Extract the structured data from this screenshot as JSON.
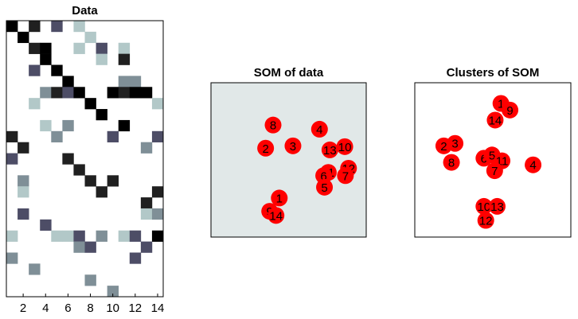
{
  "chart_data": [
    {
      "type": "heatmap",
      "title": "Data",
      "x_ticks": [
        "2",
        "4",
        "6",
        "8",
        "10",
        "12",
        "14"
      ],
      "xlim": [
        0.5,
        14.5
      ],
      "n_rows": 25,
      "level_colors": [
        "#ffffff",
        "#b2c8c8",
        "#7f8f97",
        "#4d4d66",
        "#202020",
        "#000000"
      ],
      "cells": [
        [
          1,
          1,
          5
        ],
        [
          3,
          1,
          4
        ],
        [
          5,
          1,
          3
        ],
        [
          7,
          1,
          1
        ],
        [
          2,
          2,
          5
        ],
        [
          8,
          2,
          1
        ],
        [
          3,
          3,
          4
        ],
        [
          4,
          3,
          5
        ],
        [
          7,
          3,
          1
        ],
        [
          9,
          3,
          3
        ],
        [
          11,
          3,
          1
        ],
        [
          4,
          4,
          5
        ],
        [
          9,
          4,
          1
        ],
        [
          11,
          4,
          4
        ],
        [
          3,
          5,
          3
        ],
        [
          5,
          5,
          5
        ],
        [
          6,
          6,
          5
        ],
        [
          11,
          6,
          2
        ],
        [
          12,
          6,
          2
        ],
        [
          4,
          7,
          2
        ],
        [
          5,
          7,
          4
        ],
        [
          6,
          7,
          3
        ],
        [
          7,
          7,
          5
        ],
        [
          10,
          7,
          5
        ],
        [
          11,
          7,
          4
        ],
        [
          12,
          7,
          5
        ],
        [
          13,
          7,
          5
        ],
        [
          3,
          8,
          1
        ],
        [
          8,
          8,
          5
        ],
        [
          14,
          8,
          1
        ],
        [
          9,
          9,
          5
        ],
        [
          4,
          10,
          1
        ],
        [
          6,
          10,
          2
        ],
        [
          11,
          10,
          5
        ],
        [
          1,
          11,
          4
        ],
        [
          5,
          11,
          2
        ],
        [
          10,
          11,
          3
        ],
        [
          14,
          11,
          3
        ],
        [
          2,
          12,
          4
        ],
        [
          13,
          12,
          2
        ],
        [
          1,
          13,
          3
        ],
        [
          6,
          13,
          4
        ],
        [
          7,
          14,
          4
        ],
        [
          2,
          15,
          2
        ],
        [
          8,
          15,
          4
        ],
        [
          10,
          15,
          4
        ],
        [
          2,
          16,
          1
        ],
        [
          9,
          16,
          4
        ],
        [
          14,
          16,
          4
        ],
        [
          13,
          17,
          4
        ],
        [
          2,
          18,
          3
        ],
        [
          13,
          18,
          1
        ],
        [
          14,
          18,
          2
        ],
        [
          4,
          19,
          3
        ],
        [
          1,
          20,
          1
        ],
        [
          5,
          20,
          1
        ],
        [
          6,
          20,
          1
        ],
        [
          7,
          20,
          3
        ],
        [
          9,
          20,
          2
        ],
        [
          11,
          20,
          1
        ],
        [
          12,
          20,
          3
        ],
        [
          14,
          20,
          5
        ],
        [
          7,
          21,
          2
        ],
        [
          8,
          21,
          3
        ],
        [
          13,
          21,
          3
        ],
        [
          1,
          22,
          2
        ],
        [
          12,
          22,
          3
        ],
        [
          3,
          23,
          2
        ],
        [
          8,
          24,
          2
        ],
        [
          10,
          25,
          2
        ]
      ]
    },
    {
      "type": "scatter",
      "title": "SOM of data",
      "background": "#e1e8e8",
      "marker_color": "#ff0000",
      "points": [
        {
          "label": "8",
          "x": 0.4,
          "y": 0.726
        },
        {
          "label": "2",
          "x": 0.352,
          "y": 0.576
        },
        {
          "label": "3",
          "x": 0.528,
          "y": 0.591
        },
        {
          "label": "4",
          "x": 0.699,
          "y": 0.699
        },
        {
          "label": "13",
          "x": 0.766,
          "y": 0.565
        },
        {
          "label": "10",
          "x": 0.862,
          "y": 0.586
        },
        {
          "label": "12",
          "x": 0.886,
          "y": 0.446
        },
        {
          "label": "11",
          "x": 0.756,
          "y": 0.419
        },
        {
          "label": "6",
          "x": 0.726,
          "y": 0.398
        },
        {
          "label": "7",
          "x": 0.866,
          "y": 0.398
        },
        {
          "label": "5",
          "x": 0.731,
          "y": 0.323
        },
        {
          "label": "1",
          "x": 0.44,
          "y": 0.253
        },
        {
          "label": "9",
          "x": 0.378,
          "y": 0.167
        },
        {
          "label": "14",
          "x": 0.419,
          "y": 0.14
        }
      ]
    },
    {
      "type": "scatter",
      "title": "Clusters of SOM",
      "background": "#ffffff",
      "marker_color": "#ff0000",
      "points": [
        {
          "label": "1",
          "x": 0.552,
          "y": 0.866
        },
        {
          "label": "9",
          "x": 0.61,
          "y": 0.823
        },
        {
          "label": "14",
          "x": 0.515,
          "y": 0.758
        },
        {
          "label": "2",
          "x": 0.186,
          "y": 0.591
        },
        {
          "label": "3",
          "x": 0.258,
          "y": 0.607
        },
        {
          "label": "8",
          "x": 0.235,
          "y": 0.484
        },
        {
          "label": "6",
          "x": 0.443,
          "y": 0.511
        },
        {
          "label": "5",
          "x": 0.495,
          "y": 0.532
        },
        {
          "label": "11",
          "x": 0.559,
          "y": 0.494
        },
        {
          "label": "7",
          "x": 0.512,
          "y": 0.43
        },
        {
          "label": "4",
          "x": 0.758,
          "y": 0.468
        },
        {
          "label": "10",
          "x": 0.443,
          "y": 0.199
        },
        {
          "label": "13",
          "x": 0.528,
          "y": 0.199
        },
        {
          "label": "12",
          "x": 0.455,
          "y": 0.108
        }
      ]
    }
  ]
}
